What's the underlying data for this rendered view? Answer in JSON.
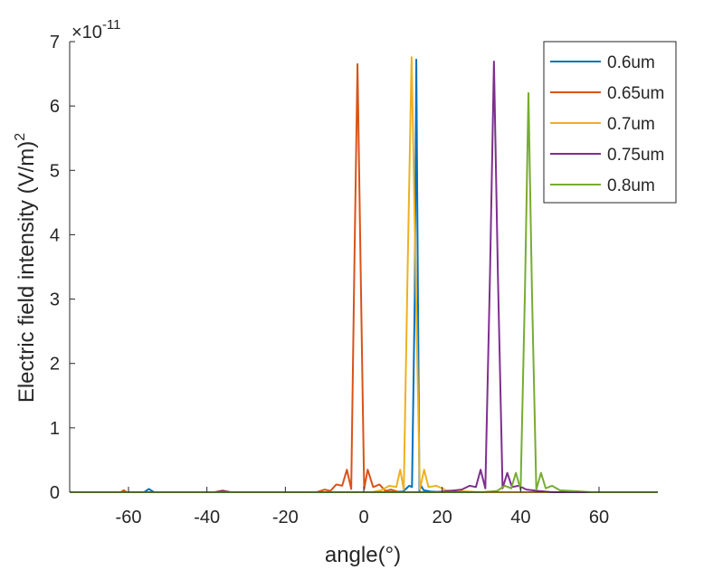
{
  "chart_data": {
    "type": "line",
    "xlabel": "angle(°)",
    "ylabel": "Electric field intensity (V/m)",
    "ylabel_superscript": "2",
    "exponent_base": "×10",
    "exponent_power": "-11",
    "xlim": [
      -75,
      75
    ],
    "ylim": [
      0,
      7
    ],
    "xticks": [
      -60,
      -40,
      -20,
      0,
      20,
      40,
      60
    ],
    "yticks": [
      0,
      1,
      2,
      3,
      4,
      5,
      6,
      7
    ],
    "legend_position": "top-right",
    "series": [
      {
        "name": "0.6um",
        "color": "#0072BD",
        "x": [
          -75,
          -56,
          -54.8,
          -53.5,
          -30,
          -10,
          5,
          10,
          11.6,
          12.3,
          13.0,
          13.4,
          13.8,
          14.2,
          14.6,
          15.3,
          17,
          20,
          40,
          60,
          75
        ],
        "y": [
          0,
          0,
          0.05,
          0,
          0,
          0,
          0,
          0.01,
          0.1,
          0.08,
          3.0,
          6.72,
          3.2,
          0.02,
          0.1,
          0.03,
          0.01,
          0,
          0,
          0,
          0
        ]
      },
      {
        "name": "0.65um",
        "color": "#D95319",
        "x": [
          -75,
          -62,
          -61.2,
          -60.5,
          -40,
          -12,
          -10,
          -8.5,
          -7,
          -5.5,
          -4.3,
          -3.2,
          -2.4,
          -1.6,
          -0.8,
          0.1,
          1,
          2.4,
          4,
          5.5,
          7,
          9,
          12,
          30,
          75
        ],
        "y": [
          0,
          0,
          0.03,
          0,
          0,
          0,
          0.04,
          0.02,
          0.12,
          0.1,
          0.35,
          0.05,
          3.5,
          6.65,
          3.5,
          0.05,
          0.35,
          0.08,
          0.12,
          0.02,
          0.04,
          0,
          0,
          0,
          0
        ]
      },
      {
        "name": "0.7um",
        "color": "#EDB120",
        "x": [
          -75,
          -38,
          -36,
          -34,
          -10,
          2,
          4.5,
          6.5,
          8.3,
          9.3,
          10.2,
          11.2,
          12.2,
          13.2,
          14.3,
          15.4,
          16.5,
          18.5,
          21,
          30,
          75
        ],
        "y": [
          0,
          0,
          0.03,
          0,
          0,
          0,
          0.03,
          0.1,
          0.08,
          0.35,
          0.04,
          3.5,
          6.76,
          3.5,
          0.04,
          0.35,
          0.08,
          0.1,
          0.03,
          0,
          0
        ]
      },
      {
        "name": "0.75um",
        "color": "#7E2F8E",
        "x": [
          -75,
          -38,
          -36,
          -34,
          10,
          18,
          22,
          25,
          27,
          28.6,
          29.8,
          31,
          32.2,
          33.2,
          34.2,
          35.4,
          36.6,
          37.8,
          39.5,
          41.5,
          44.5,
          48,
          75
        ],
        "y": [
          0,
          0,
          0.02,
          0,
          0,
          0,
          0.02,
          0.04,
          0.1,
          0.08,
          0.35,
          0.06,
          3.4,
          6.69,
          3.4,
          0.06,
          0.3,
          0.08,
          0.1,
          0.04,
          0.02,
          0,
          0
        ]
      },
      {
        "name": "0.8um",
        "color": "#77AC30",
        "x": [
          -75,
          20,
          30,
          34,
          36,
          37.6,
          38.8,
          40,
          41.1,
          42,
          42.9,
          44,
          45.2,
          46.4,
          48,
          50,
          53,
          58,
          75
        ],
        "y": [
          0,
          0,
          0,
          0.02,
          0.1,
          0.06,
          0.3,
          0.04,
          3.1,
          6.2,
          3.1,
          0.04,
          0.3,
          0.06,
          0.1,
          0.03,
          0.02,
          0,
          0
        ]
      }
    ]
  }
}
